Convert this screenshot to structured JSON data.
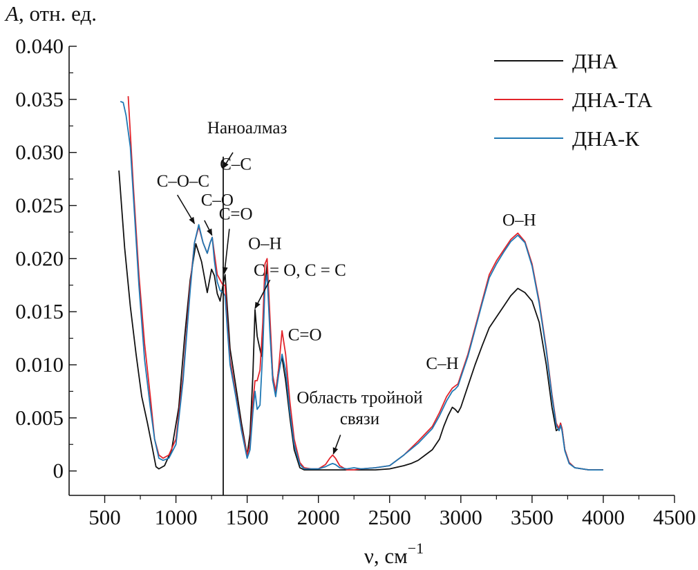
{
  "chart_data": {
    "type": "line",
    "title": "",
    "ylabel_symbol": "A",
    "ylabel_unit": ", отн. ед.",
    "xlabel_main": "ν, см",
    "xlabel_exp": "−1",
    "xlim": [
      250,
      4500
    ],
    "ylim": [
      -0.0023,
      0.04
    ],
    "x_ticks": [
      500,
      1000,
      1500,
      2000,
      2500,
      3000,
      3500,
      4000,
      4500
    ],
    "x_tick_labels": [
      "500",
      "1000",
      "1500",
      "2000",
      "2500",
      "3000",
      "3500",
      "4000",
      "4500"
    ],
    "y_ticks": [
      0,
      0.005,
      0.01,
      0.015,
      0.02,
      0.025,
      0.03,
      0.035,
      0.04
    ],
    "y_tick_labels": [
      "0",
      "0.005",
      "0.010",
      "0.015",
      "0.020",
      "0.025",
      "0.030",
      "0.035",
      "0.040"
    ],
    "grid": false,
    "legend_position": "top-right",
    "colors": {
      "ДНА": "#111111",
      "ДНА-ТА": "#e2232a",
      "ДНА-К": "#1f78b4",
      "axis": "#111111"
    },
    "vertical_line": {
      "x": 1332,
      "y_top": 0.0296
    },
    "series": [
      {
        "name": "ДНА",
        "x": [
          600,
          640,
          680,
          720,
          760,
          800,
          830,
          860,
          880,
          920,
          970,
          1020,
          1060,
          1100,
          1140,
          1180,
          1220,
          1250,
          1270,
          1290,
          1310,
          1330,
          1345,
          1360,
          1380,
          1420,
          1460,
          1500,
          1520,
          1540,
          1555,
          1570,
          1600,
          1620,
          1640,
          1660,
          1680,
          1700,
          1720,
          1745,
          1770,
          1800,
          1830,
          1870,
          1900,
          1950,
          2000,
          2100,
          2200,
          2300,
          2400,
          2500,
          2600,
          2650,
          2700,
          2750,
          2800,
          2850,
          2880,
          2910,
          2940,
          2960,
          2980,
          3000,
          3050,
          3100,
          3150,
          3200,
          3250,
          3300,
          3350,
          3400,
          3450,
          3500,
          3550,
          3600,
          3640,
          3670,
          3690,
          3700,
          3710,
          3730,
          3760,
          3800,
          3900,
          4000
        ],
        "values": [
          0.0283,
          0.021,
          0.0155,
          0.011,
          0.007,
          0.0045,
          0.0025,
          0.0004,
          0.0002,
          0.0005,
          0.002,
          0.006,
          0.0125,
          0.018,
          0.0214,
          0.0197,
          0.0168,
          0.019,
          0.0184,
          0.0167,
          0.016,
          0.0175,
          0.0185,
          0.0155,
          0.0115,
          0.008,
          0.0045,
          0.0015,
          0.0035,
          0.009,
          0.0152,
          0.0127,
          0.0108,
          0.0165,
          0.0195,
          0.0135,
          0.0085,
          0.0073,
          0.0095,
          0.0107,
          0.0085,
          0.005,
          0.002,
          0.0003,
          0.0001,
          0.0001,
          0.0001,
          0.0001,
          0.0001,
          0.0001,
          0.0001,
          0.0002,
          0.0005,
          0.0007,
          0.001,
          0.0015,
          0.002,
          0.003,
          0.0042,
          0.0052,
          0.006,
          0.0058,
          0.0055,
          0.006,
          0.008,
          0.01,
          0.0118,
          0.0135,
          0.0145,
          0.0155,
          0.0165,
          0.0172,
          0.0168,
          0.016,
          0.014,
          0.01,
          0.006,
          0.0038,
          0.004,
          0.0045,
          0.004,
          0.002,
          0.0008,
          0.0003,
          0.0001,
          0.0001
        ]
      },
      {
        "name": "ДНА-ТА",
        "x": [
          665,
          700,
          740,
          780,
          820,
          850,
          880,
          910,
          950,
          1000,
          1050,
          1100,
          1130,
          1160,
          1190,
          1220,
          1240,
          1255,
          1270,
          1290,
          1310,
          1330,
          1345,
          1360,
          1380,
          1420,
          1460,
          1500,
          1520,
          1540,
          1555,
          1570,
          1590,
          1610,
          1625,
          1640,
          1660,
          1680,
          1700,
          1720,
          1745,
          1770,
          1800,
          1830,
          1870,
          1900,
          1950,
          2000,
          2050,
          2080,
          2100,
          2120,
          2150,
          2200,
          2250,
          2300,
          2400,
          2500,
          2600,
          2700,
          2800,
          2850,
          2900,
          2940,
          2960,
          2980,
          3000,
          3050,
          3100,
          3150,
          3200,
          3250,
          3300,
          3350,
          3400,
          3450,
          3500,
          3550,
          3600,
          3640,
          3670,
          3690,
          3700,
          3710,
          3730,
          3760,
          3800,
          3900,
          4000
        ],
        "values": [
          0.0353,
          0.027,
          0.0185,
          0.012,
          0.007,
          0.003,
          0.0015,
          0.0012,
          0.0015,
          0.003,
          0.009,
          0.0175,
          0.0215,
          0.023,
          0.0215,
          0.0205,
          0.0215,
          0.022,
          0.0205,
          0.0185,
          0.018,
          0.0175,
          0.0175,
          0.014,
          0.0105,
          0.0072,
          0.004,
          0.0015,
          0.0025,
          0.0065,
          0.0085,
          0.0085,
          0.0095,
          0.014,
          0.0195,
          0.02,
          0.0145,
          0.009,
          0.0075,
          0.0095,
          0.0132,
          0.011,
          0.0065,
          0.003,
          0.0008,
          0.0003,
          0.0002,
          0.0002,
          0.0006,
          0.0012,
          0.0015,
          0.0012,
          0.0005,
          0.0001,
          0.0001,
          0.0002,
          0.0003,
          0.0005,
          0.0015,
          0.0028,
          0.0042,
          0.0055,
          0.007,
          0.0078,
          0.008,
          0.0082,
          0.009,
          0.011,
          0.0135,
          0.016,
          0.0185,
          0.0198,
          0.0208,
          0.0218,
          0.0224,
          0.0216,
          0.0195,
          0.016,
          0.0115,
          0.0072,
          0.0045,
          0.004,
          0.0045,
          0.004,
          0.002,
          0.0008,
          0.0003,
          0.0001,
          0.0001
        ]
      },
      {
        "name": "ДНА-К",
        "x": [
          610,
          630,
          650,
          680,
          710,
          740,
          780,
          820,
          850,
          880,
          910,
          950,
          1000,
          1050,
          1100,
          1130,
          1160,
          1190,
          1220,
          1240,
          1255,
          1270,
          1290,
          1310,
          1330,
          1345,
          1360,
          1380,
          1420,
          1460,
          1500,
          1520,
          1540,
          1555,
          1570,
          1590,
          1610,
          1625,
          1640,
          1660,
          1680,
          1700,
          1720,
          1745,
          1770,
          1800,
          1830,
          1870,
          1900,
          1950,
          2000,
          2050,
          2080,
          2100,
          2120,
          2150,
          2200,
          2250,
          2300,
          2400,
          2500,
          2600,
          2700,
          2800,
          2850,
          2900,
          2940,
          2960,
          2980,
          3000,
          3050,
          3100,
          3150,
          3200,
          3250,
          3300,
          3350,
          3400,
          3450,
          3500,
          3550,
          3600,
          3640,
          3670,
          3690,
          3700,
          3710,
          3730,
          3760,
          3800,
          3900,
          4000
        ],
        "values": [
          0.0348,
          0.0347,
          0.0335,
          0.0305,
          0.024,
          0.0175,
          0.0105,
          0.006,
          0.003,
          0.0012,
          0.001,
          0.0012,
          0.0025,
          0.0085,
          0.017,
          0.0215,
          0.0232,
          0.0215,
          0.0205,
          0.0215,
          0.022,
          0.0198,
          0.0178,
          0.017,
          0.0168,
          0.0165,
          0.0135,
          0.01,
          0.007,
          0.0038,
          0.0012,
          0.002,
          0.0055,
          0.0075,
          0.0058,
          0.0062,
          0.0115,
          0.0175,
          0.0185,
          0.013,
          0.0085,
          0.007,
          0.009,
          0.011,
          0.0095,
          0.0055,
          0.0025,
          0.0006,
          0.0002,
          0.0002,
          0.0002,
          0.0004,
          0.0006,
          0.0007,
          0.0006,
          0.0003,
          0.0002,
          0.0003,
          0.0002,
          0.0003,
          0.0005,
          0.0015,
          0.0026,
          0.004,
          0.0052,
          0.0066,
          0.0075,
          0.0077,
          0.008,
          0.0088,
          0.0108,
          0.0133,
          0.0158,
          0.0182,
          0.0195,
          0.0206,
          0.0216,
          0.0222,
          0.0215,
          0.0193,
          0.0158,
          0.0113,
          0.007,
          0.0043,
          0.0038,
          0.0043,
          0.0038,
          0.0019,
          0.0007,
          0.0003,
          0.0001,
          0.0001
        ]
      }
    ],
    "annotations": [
      {
        "text": "Наноалмаз",
        "text_x": 1500,
        "text_y": 0.0318,
        "arrow": {
          "from_x": 1400,
          "from_y": 0.03,
          "to_x": 1330,
          "to_y": 0.0285
        }
      },
      {
        "text": "С–С",
        "text_x": 1420,
        "text_y": 0.0284,
        "arrow": null
      },
      {
        "text": "С–О–С",
        "text_x": 1050,
        "text_y": 0.0268,
        "arrow": {
          "from_x": 1010,
          "from_y": 0.026,
          "to_x": 1130,
          "to_y": 0.0233
        }
      },
      {
        "text": "С–О",
        "text_x": 1290,
        "text_y": 0.025,
        "arrow": {
          "from_x": 1200,
          "from_y": 0.0236,
          "to_x": 1253,
          "to_y": 0.0222
        }
      },
      {
        "text": "С=О",
        "text_x": 1420,
        "text_y": 0.0237,
        "arrow": {
          "from_x": 1375,
          "from_y": 0.0228,
          "to_x": 1340,
          "to_y": 0.0186
        }
      },
      {
        "text": "О–Н",
        "text_x": 1625,
        "text_y": 0.0209,
        "arrow": null
      },
      {
        "text": "С = О, С = С",
        "text_x": 1870,
        "text_y": 0.0184,
        "arrow": {
          "from_x": 1660,
          "from_y": 0.018,
          "to_x": 1555,
          "to_y": 0.0153
        }
      },
      {
        "text": "С=О",
        "text_x": 1905,
        "text_y": 0.0123,
        "arrow": null
      },
      {
        "text": "Область тройной",
        "text_x": 2290,
        "text_y": 0.0064,
        "arrow": null
      },
      {
        "text": "связи",
        "text_x": 2290,
        "text_y": 0.0044,
        "arrow": {
          "from_x": 2155,
          "from_y": 0.0034,
          "to_x": 2105,
          "to_y": 0.0016
        }
      },
      {
        "text": "С–Н",
        "text_x": 2870,
        "text_y": 0.0096,
        "arrow": null
      },
      {
        "text": "О–Н",
        "text_x": 3410,
        "text_y": 0.0231,
        "arrow": null
      }
    ]
  }
}
